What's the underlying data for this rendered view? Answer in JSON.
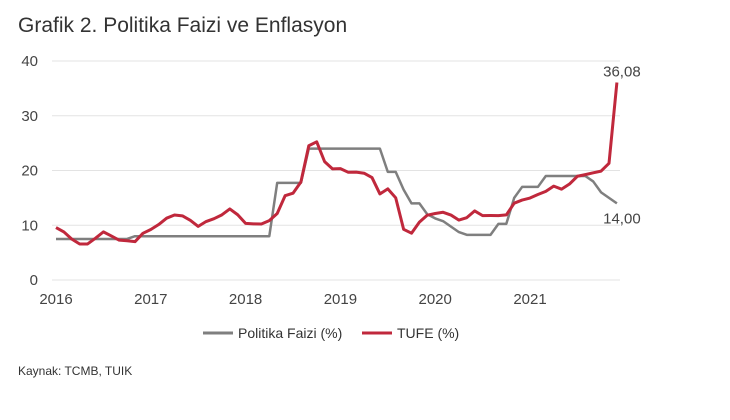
{
  "title": "Grafik 2. Politika Faizi ve Enflasyon",
  "source": "Kaynak: TCMB, TUIK",
  "chart_data": {
    "type": "line",
    "title": "Grafik 2. Politika Faizi ve Enflasyon",
    "xlabel": "",
    "ylabel": "",
    "x_start": "2016-01",
    "x_end": "2021-12",
    "frequency": "monthly",
    "x_ticks": [
      "2016",
      "2017",
      "2018",
      "2019",
      "2020",
      "2021"
    ],
    "y_ticks": [
      "0",
      "10",
      "20",
      "30",
      "40"
    ],
    "ylim": [
      0,
      40
    ],
    "grid": true,
    "legend": "bottom",
    "series": [
      {
        "name": "Politika Faizi (%)",
        "color": "#7f7f7f",
        "end_label": "14,00",
        "values": [
          7.5,
          7.5,
          7.5,
          7.5,
          7.5,
          7.5,
          7.5,
          7.5,
          7.5,
          7.5,
          8,
          8,
          8,
          8,
          8,
          8,
          8,
          8,
          8,
          8,
          8,
          8,
          8,
          8,
          8,
          8,
          8,
          8,
          17.75,
          17.75,
          17.75,
          17.75,
          24,
          24,
          24,
          24,
          24,
          24,
          24,
          24,
          24,
          24,
          19.75,
          19.75,
          16.5,
          14,
          14,
          12,
          11.25,
          10.75,
          9.75,
          8.75,
          8.25,
          8.25,
          8.25,
          8.25,
          10.25,
          10.25,
          15,
          17,
          17,
          17,
          19,
          19,
          19,
          19,
          19,
          19,
          18,
          16,
          15,
          14
        ]
      },
      {
        "name": "TUFE (%)",
        "color": "#c0283c",
        "end_label": "36,08",
        "values": [
          9.58,
          8.78,
          7.46,
          6.57,
          6.58,
          7.64,
          8.79,
          8.05,
          7.28,
          7.16,
          7.0,
          8.53,
          9.22,
          10.13,
          11.29,
          11.87,
          11.72,
          10.9,
          9.79,
          10.68,
          11.2,
          11.9,
          12.98,
          11.92,
          10.35,
          10.26,
          10.23,
          10.85,
          12.15,
          15.39,
          15.85,
          17.9,
          24.52,
          25.24,
          21.62,
          20.3,
          20.35,
          19.67,
          19.71,
          19.5,
          18.71,
          15.72,
          16.65,
          15.01,
          9.26,
          8.55,
          10.56,
          11.84,
          12.15,
          12.37,
          11.86,
          10.94,
          11.39,
          12.62,
          11.76,
          11.77,
          11.75,
          11.89,
          14.03,
          14.6,
          14.97,
          15.61,
          16.19,
          17.14,
          16.59,
          17.53,
          18.95,
          19.25,
          19.58,
          19.89,
          21.31,
          36.08
        ]
      }
    ]
  }
}
